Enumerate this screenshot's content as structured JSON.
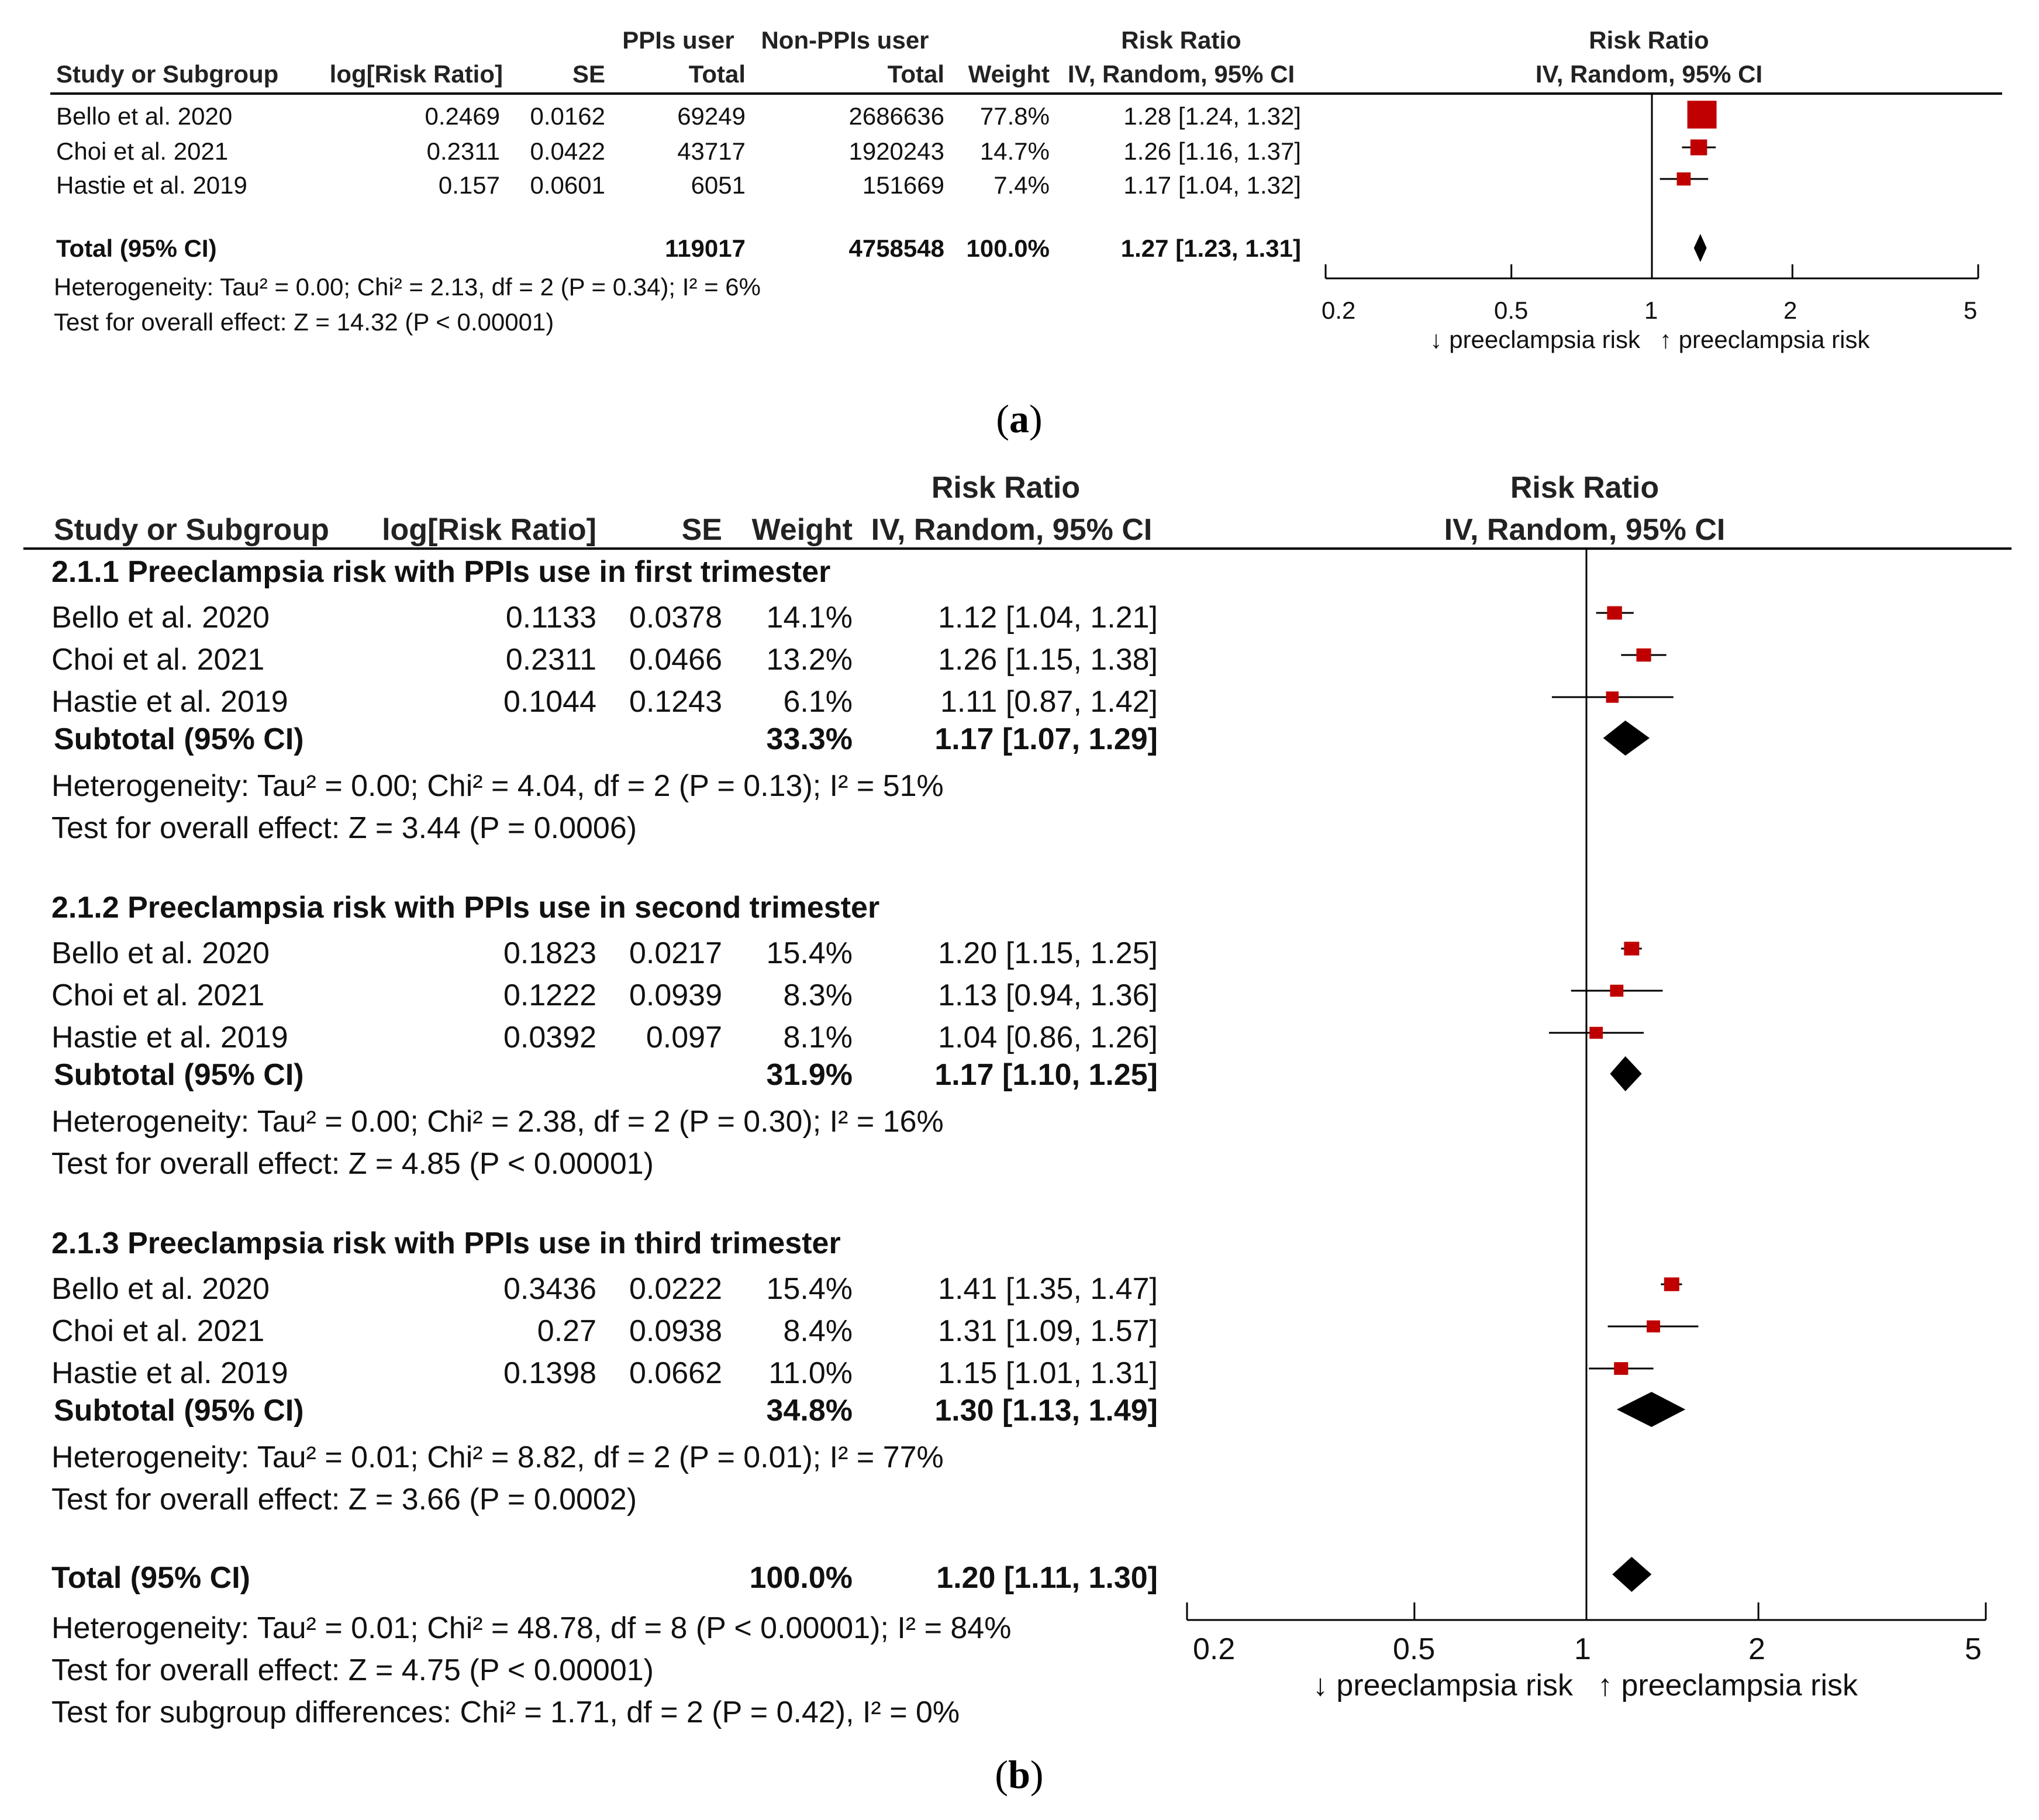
{
  "panel_a": {
    "caption": "a",
    "columns": {
      "group1_top": "PPIs user",
      "group2_top": "Non-PPIs user",
      "rr_top": "Risk Ratio",
      "plot_top": "Risk Ratio",
      "study": "Study or Subgroup",
      "logrr": "log[Risk Ratio]",
      "se": "SE",
      "total1": "Total",
      "total2": "Total",
      "weight": "Weight",
      "rr_method": "IV, Random, 95% CI",
      "plot_method": "IV, Random, 95% CI"
    },
    "rows": [
      {
        "study": "Bello et al. 2020",
        "logrr": "0.2469",
        "se": "0.0162",
        "total1": "69249",
        "total2": "2686636",
        "weight": "77.8%",
        "ci_text": "1.28 [1.24, 1.32]"
      },
      {
        "study": "Choi et al. 2021",
        "logrr": "0.2311",
        "se": "0.0422",
        "total1": "43717",
        "total2": "1920243",
        "weight": "14.7%",
        "ci_text": "1.26 [1.16, 1.37]"
      },
      {
        "study": "Hastie et al. 2019",
        "logrr": "0.157",
        "se": "0.0601",
        "total1": "6051",
        "total2": "151669",
        "weight": "7.4%",
        "ci_text": "1.17 [1.04, 1.32]"
      }
    ],
    "total": {
      "label": "Total (95% CI)",
      "total1": "119017",
      "total2": "4758548",
      "weight": "100.0%",
      "ci_text": "1.27 [1.23, 1.31]"
    },
    "heterogeneity": "Heterogeneity: Tau² = 0.00; Chi² = 2.13, df = 2 (P = 0.34); I² = 6%",
    "overall": "Test for overall effect: Z = 14.32 (P < 0.00001)",
    "axis": {
      "ticks": [
        "0.2",
        "0.5",
        "1",
        "2",
        "5"
      ],
      "left_label": "↓ preeclampsia risk",
      "right_label": "↑ preeclampsia risk"
    }
  },
  "panel_b": {
    "caption": "b",
    "columns": {
      "rr_top": "Risk Ratio",
      "plot_top": "Risk Ratio",
      "study": "Study or Subgroup",
      "logrr": "log[Risk Ratio]",
      "se": "SE",
      "weight": "Weight",
      "rr_method": "IV, Random, 95% CI",
      "plot_method": "IV, Random, 95% CI"
    },
    "subgroups": [
      {
        "title": "2.1.1 Preeclampsia risk with PPIs use in first trimester",
        "rows": [
          {
            "study": "Bello et al. 2020",
            "logrr": "0.1133",
            "se": "0.0378",
            "weight": "14.1%",
            "ci_text": "1.12 [1.04, 1.21]"
          },
          {
            "study": "Choi et al. 2021",
            "logrr": "0.2311",
            "se": "0.0466",
            "weight": "13.2%",
            "ci_text": "1.26 [1.15, 1.38]"
          },
          {
            "study": "Hastie et al. 2019",
            "logrr": "0.1044",
            "se": "0.1243",
            "weight": "6.1%",
            "ci_text": "1.11 [0.87, 1.42]"
          }
        ],
        "subtotal": {
          "label": "Subtotal (95% CI)",
          "weight": "33.3%",
          "ci_text": "1.17 [1.07, 1.29]"
        },
        "heterogeneity": "Heterogeneity: Tau² = 0.00; Chi² = 4.04, df = 2 (P = 0.13); I² = 51%",
        "overall": "Test for overall effect: Z = 3.44 (P = 0.0006)"
      },
      {
        "title": "2.1.2 Preeclampsia risk with PPIs use in second trimester",
        "rows": [
          {
            "study": "Bello et al. 2020",
            "logrr": "0.1823",
            "se": "0.0217",
            "weight": "15.4%",
            "ci_text": "1.20 [1.15, 1.25]"
          },
          {
            "study": "Choi et al. 2021",
            "logrr": "0.1222",
            "se": "0.0939",
            "weight": "8.3%",
            "ci_text": "1.13 [0.94, 1.36]"
          },
          {
            "study": "Hastie et al. 2019",
            "logrr": "0.0392",
            "se": "0.097",
            "weight": "8.1%",
            "ci_text": "1.04 [0.86, 1.26]"
          }
        ],
        "subtotal": {
          "label": "Subtotal (95% CI)",
          "weight": "31.9%",
          "ci_text": "1.17 [1.10, 1.25]"
        },
        "heterogeneity": "Heterogeneity: Tau² = 0.00; Chi² = 2.38, df = 2 (P = 0.30); I² = 16%",
        "overall": "Test for overall effect: Z = 4.85 (P < 0.00001)"
      },
      {
        "title": "2.1.3 Preeclampsia risk with PPIs use in third trimester",
        "rows": [
          {
            "study": "Bello et al. 2020",
            "logrr": "0.3436",
            "se": "0.0222",
            "weight": "15.4%",
            "ci_text": "1.41 [1.35, 1.47]"
          },
          {
            "study": "Choi et al. 2021",
            "logrr": "0.27",
            "se": "0.0938",
            "weight": "8.4%",
            "ci_text": "1.31 [1.09, 1.57]"
          },
          {
            "study": "Hastie et al. 2019",
            "logrr": "0.1398",
            "se": "0.0662",
            "weight": "11.0%",
            "ci_text": "1.15 [1.01, 1.31]"
          }
        ],
        "subtotal": {
          "label": "Subtotal (95% CI)",
          "weight": "34.8%",
          "ci_text": "1.30 [1.13, 1.49]"
        },
        "heterogeneity": "Heterogeneity: Tau² = 0.01; Chi² = 8.82, df = 2 (P = 0.01); I² = 77%",
        "overall": "Test for overall effect: Z = 3.66 (P = 0.0002)"
      }
    ],
    "total": {
      "label": "Total (95% CI)",
      "weight": "100.0%",
      "ci_text": "1.20 [1.11, 1.30]"
    },
    "heterogeneity": "Heterogeneity: Tau² = 0.01; Chi² = 48.78, df = 8 (P < 0.00001); I² = 84%",
    "overall": "Test for overall effect: Z = 4.75 (P < 0.00001)",
    "subgroup_diff": "Test for subgroup differences: Chi² = 1.71, df = 2 (P = 0.42), I² = 0%",
    "axis": {
      "ticks": [
        "0.2",
        "0.5",
        "1",
        "2",
        "5"
      ],
      "left_label": "↓ preeclampsia risk",
      "right_label": "↑ preeclampsia risk"
    }
  },
  "chart_data": [
    {
      "type": "forest",
      "title": "Risk Ratio IV, Random, 95% CI",
      "scale": "log",
      "xlim": [
        0.2,
        5
      ],
      "reference": 1,
      "xlabel_left": "↓ preeclampsia risk",
      "xlabel_right": "↑ preeclampsia risk",
      "studies": [
        {
          "name": "Bello et al. 2020",
          "rr": 1.28,
          "lo": 1.24,
          "hi": 1.32,
          "weight": 77.8
        },
        {
          "name": "Choi et al. 2021",
          "rr": 1.26,
          "lo": 1.16,
          "hi": 1.37,
          "weight": 14.7
        },
        {
          "name": "Hastie et al. 2019",
          "rr": 1.17,
          "lo": 1.04,
          "hi": 1.32,
          "weight": 7.4
        }
      ],
      "pooled": {
        "name": "Total (95% CI)",
        "rr": 1.27,
        "lo": 1.23,
        "hi": 1.31
      }
    },
    {
      "type": "forest",
      "title": "Risk Ratio IV, Random, 95% CI",
      "scale": "log",
      "xlim": [
        0.2,
        5
      ],
      "reference": 1,
      "xlabel_left": "↓ preeclampsia risk",
      "xlabel_right": "↑ preeclampsia risk",
      "subgroups": [
        {
          "name": "2.1.1 Preeclampsia risk with PPIs use in first trimester",
          "studies": [
            {
              "name": "Bello et al. 2020",
              "rr": 1.12,
              "lo": 1.04,
              "hi": 1.21,
              "weight": 14.1
            },
            {
              "name": "Choi et al. 2021",
              "rr": 1.26,
              "lo": 1.15,
              "hi": 1.38,
              "weight": 13.2
            },
            {
              "name": "Hastie et al. 2019",
              "rr": 1.11,
              "lo": 0.87,
              "hi": 1.42,
              "weight": 6.1
            }
          ],
          "pooled": {
            "rr": 1.17,
            "lo": 1.07,
            "hi": 1.29
          }
        },
        {
          "name": "2.1.2 Preeclampsia risk with PPIs use in second trimester",
          "studies": [
            {
              "name": "Bello et al. 2020",
              "rr": 1.2,
              "lo": 1.15,
              "hi": 1.25,
              "weight": 15.4
            },
            {
              "name": "Choi et al. 2021",
              "rr": 1.13,
              "lo": 0.94,
              "hi": 1.36,
              "weight": 8.3
            },
            {
              "name": "Hastie et al. 2019",
              "rr": 1.04,
              "lo": 0.86,
              "hi": 1.26,
              "weight": 8.1
            }
          ],
          "pooled": {
            "rr": 1.17,
            "lo": 1.1,
            "hi": 1.25
          }
        },
        {
          "name": "2.1.3 Preeclampsia risk with PPIs use in third trimester",
          "studies": [
            {
              "name": "Bello et al. 2020",
              "rr": 1.41,
              "lo": 1.35,
              "hi": 1.47,
              "weight": 15.4
            },
            {
              "name": "Choi et al. 2021",
              "rr": 1.31,
              "lo": 1.09,
              "hi": 1.57,
              "weight": 8.4
            },
            {
              "name": "Hastie et al. 2019",
              "rr": 1.15,
              "lo": 1.01,
              "hi": 1.31,
              "weight": 11.0
            }
          ],
          "pooled": {
            "rr": 1.3,
            "lo": 1.13,
            "hi": 1.49
          }
        }
      ],
      "pooled": {
        "name": "Total (95% CI)",
        "rr": 1.2,
        "lo": 1.11,
        "hi": 1.3
      }
    }
  ],
  "colors": {
    "square": "#c00000",
    "diamond": "#000000",
    "line": "#000000"
  }
}
